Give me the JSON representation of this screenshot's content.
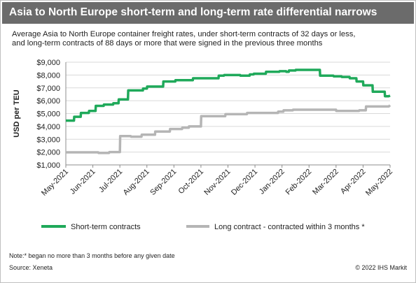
{
  "header": {
    "title": "Asia to North Europe short-term and long-term rate differential narrows"
  },
  "subtitle": {
    "line1": "Average Asia to North Europe container freight rates, under short-term contracts of 32 days or less,",
    "line2": "and long-term contracts of 88 days or more that were signed in the previous three months"
  },
  "footer": {
    "note": "Note:* began no more than 3 months before any given date",
    "source": "Source: Xeneta",
    "copyright": "© 2022 IHS Markit"
  },
  "chart_data": {
    "type": "line",
    "title": "",
    "xlabel": "",
    "ylabel": "USD per TEU",
    "ylim": [
      1000,
      9000
    ],
    "yticks": [
      1000,
      2000,
      3000,
      4000,
      5000,
      6000,
      7000,
      8000,
      9000
    ],
    "ytick_labels": [
      "$1,000",
      "$2,000",
      "$3,000",
      "$4,000",
      "$5,000",
      "$6,000",
      "$7,000",
      "$8,000",
      "$9,000"
    ],
    "x_range": [
      0,
      12
    ],
    "xtick_labels": [
      "May-2021",
      "Jun-2021",
      "Jul-2021",
      "Aug-2021",
      "Sep-2021",
      "Oct-2021",
      "Nov-2021",
      "Dec-2021",
      "Jan-2022",
      "Feb-2022",
      "Mar-2022",
      "Apr-2022",
      "May-2022"
    ],
    "grid": "horizontal",
    "legend_position": "bottom",
    "colors": {
      "short": "#1fa95a",
      "long": "#b5b5b5"
    },
    "series": [
      {
        "name": "Short-term contracts",
        "x": [
          0,
          0.3,
          0.31,
          0.55,
          0.56,
          0.85,
          0.86,
          1.1,
          1.11,
          1.4,
          1.41,
          1.75,
          1.76,
          1.95,
          1.96,
          2.3,
          2.31,
          2.85,
          2.86,
          3.0,
          3.01,
          3.6,
          3.61,
          4.05,
          4.06,
          4.7,
          4.71,
          5.65,
          5.66,
          5.85,
          5.86,
          6.45,
          6.46,
          6.8,
          6.81,
          6.95,
          6.96,
          7.4,
          7.41,
          7.9,
          7.91,
          8.15,
          8.16,
          8.25,
          8.26,
          8.5,
          8.51,
          9.4,
          9.41,
          9.9,
          9.91,
          10.2,
          10.21,
          10.5,
          10.51,
          10.75,
          10.76,
          11.0,
          11.01,
          11.35,
          11.36,
          11.8,
          11.81,
          11.95,
          12.0
        ],
        "y": [
          4450,
          4450,
          4750,
          4750,
          5050,
          5050,
          5200,
          5200,
          5600,
          5600,
          5700,
          5700,
          5800,
          5800,
          6100,
          6100,
          6800,
          6800,
          6950,
          6950,
          7100,
          7100,
          7500,
          7500,
          7600,
          7600,
          7750,
          7750,
          7950,
          7950,
          8000,
          8000,
          7950,
          7950,
          8050,
          8050,
          8100,
          8100,
          8250,
          8250,
          8300,
          8300,
          8250,
          8250,
          8350,
          8350,
          8400,
          8400,
          7950,
          7950,
          7900,
          7900,
          7850,
          7850,
          7750,
          7750,
          7500,
          7500,
          7200,
          7200,
          6700,
          6700,
          6350,
          6350,
          6400
        ]
      },
      {
        "name": "Long contract - contracted within 3 months *",
        "x": [
          0,
          1.2,
          1.21,
          1.6,
          1.61,
          2.0,
          2.01,
          2.4,
          2.41,
          2.8,
          2.81,
          3.3,
          3.31,
          3.85,
          3.86,
          4.3,
          4.31,
          4.55,
          4.56,
          5.0,
          5.01,
          5.9,
          5.91,
          6.7,
          6.71,
          7.85,
          7.86,
          8.05,
          8.06,
          8.4,
          8.41,
          10.0,
          10.01,
          10.85,
          10.86,
          11.1,
          11.11,
          11.95,
          12.0
        ],
        "y": [
          1980,
          1980,
          1930,
          1930,
          2000,
          2000,
          3250,
          3250,
          3200,
          3200,
          3350,
          3350,
          3600,
          3600,
          3800,
          3800,
          3900,
          3900,
          4000,
          4000,
          4800,
          4800,
          4950,
          4950,
          5050,
          5050,
          5150,
          5150,
          5250,
          5250,
          5300,
          5300,
          5200,
          5200,
          5250,
          5250,
          5550,
          5550,
          5650
        ]
      }
    ]
  }
}
